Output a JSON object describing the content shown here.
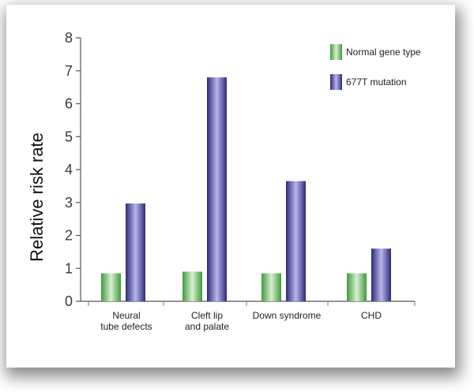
{
  "chart_data": {
    "type": "bar",
    "ylabel": "Relative risk rate",
    "ylim": [
      0,
      8
    ],
    "yticks": [
      0,
      1,
      2,
      3,
      4,
      5,
      6,
      7,
      8
    ],
    "categories": [
      [
        "Neural",
        "tube defects"
      ],
      [
        "Cleft lip",
        "and palate"
      ],
      [
        "Down syndrome"
      ],
      [
        "CHD"
      ]
    ],
    "series": [
      {
        "name": "Normal gene type",
        "values": [
          0.85,
          0.9,
          0.85,
          0.85
        ]
      },
      {
        "name": "677T mutation",
        "values": [
          2.97,
          6.8,
          3.65,
          1.6
        ]
      }
    ],
    "colors": {
      "normal_dark": "#3f9a3f",
      "normal_light": "#d9f0d0",
      "mutation_dark": "#2c2a78",
      "mutation_light": "#b8b6ea"
    },
    "legend_position": "top-right",
    "grid": false
  }
}
